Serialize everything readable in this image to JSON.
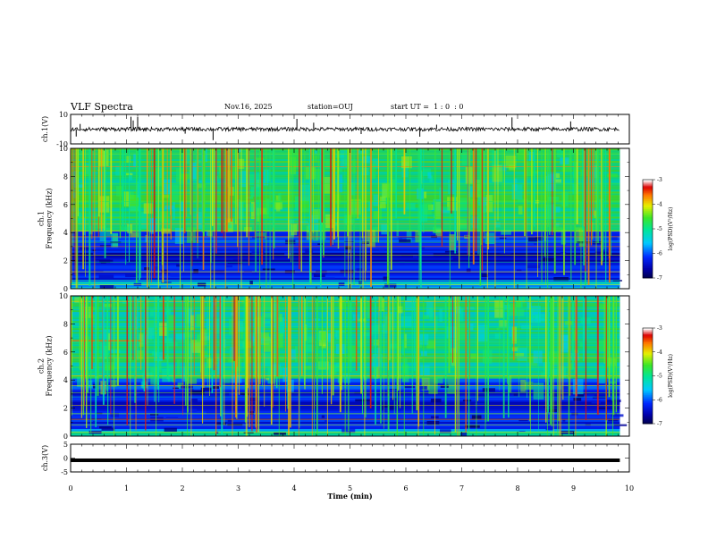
{
  "header": {
    "title": "VLF Spectra",
    "date": "Nov.16, 2025",
    "station": "station=OUJ",
    "start_ut": "start UT =  1 : 0  : 0"
  },
  "chart_data": [
    {
      "type": "line",
      "name": "ch1-waveform",
      "ylabel": "ch.1(V)",
      "ylim": [
        -10,
        10
      ],
      "yticks": [
        "10",
        "-10"
      ],
      "baseline": 0,
      "spike_times_min": [
        0.1,
        0.17,
        1.08,
        1.12,
        1.2,
        2.05,
        2.55,
        4.05,
        4.35,
        5.2,
        6.25,
        6.55,
        7.9,
        8.95
      ]
    },
    {
      "type": "heatmap",
      "name": "ch1-spectrogram",
      "ylabel": "ch.1\nFrequency (kHz)",
      "ylim": [
        0,
        10
      ],
      "yticks": [
        "0",
        "2",
        "4",
        "6",
        "8",
        "10"
      ],
      "colorbar": {
        "label": "log(PSD)(V²/Hz)",
        "range": [
          -7,
          -3
        ],
        "ticks": [
          "-3",
          "-4",
          "-5",
          "-6",
          "-7"
        ]
      }
    },
    {
      "type": "heatmap",
      "name": "ch2-spectrogram",
      "ylabel": "ch.2\nFrequency (kHz)",
      "ylim": [
        0,
        10
      ],
      "yticks": [
        "0",
        "2",
        "4",
        "6",
        "8",
        "10"
      ],
      "colorbar": {
        "label": "log(PSD)(V²/Hz)",
        "range": [
          -7,
          -3
        ],
        "ticks": [
          "-3",
          "-4",
          "-5",
          "-6",
          "-7"
        ]
      }
    },
    {
      "type": "line",
      "name": "ch3-waveform",
      "ylabel": "ch.3(V)",
      "ylim": [
        -5,
        5
      ],
      "yticks": [
        "5",
        "0",
        "-5"
      ],
      "level": -0.8
    }
  ],
  "xaxis": {
    "label": "Time (min)",
    "xlim": [
      0,
      10
    ],
    "ticks": [
      "0",
      "1",
      "2",
      "3",
      "4",
      "5",
      "6",
      "7",
      "8",
      "9",
      "10"
    ],
    "data_end_min": 9.83
  }
}
